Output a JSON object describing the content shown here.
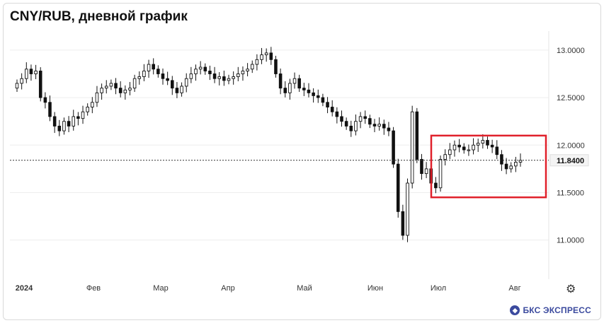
{
  "title": "CNY/RUB, дневной график",
  "brand": {
    "name": "БКС ЭКСПРЕСС",
    "icon": "bks-logo-icon"
  },
  "settings_icon": "gear-icon",
  "colors": {
    "candle": "#111111",
    "highlight_box": "#e0202a",
    "dotted_line": "#333333",
    "grid": "#eeeeee"
  },
  "chart_data": {
    "type": "candlestick",
    "title": "CNY/RUB, дневной график",
    "x_tick_labels": [
      "2024",
      "Фев",
      "Мар",
      "Апр",
      "Май",
      "Июн",
      "Июл",
      "Авг"
    ],
    "y_tick_labels": [
      "13.0000",
      "12.5000",
      "12.0000",
      "11.5000",
      "11.0000"
    ],
    "y_ticks": [
      13.0,
      12.5,
      12.0,
      11.5,
      11.0
    ],
    "ylim": [
      10.7,
      13.2
    ],
    "last_price_label": "11.8400",
    "last_price": 11.84,
    "highlight_range": {
      "x_start": "Июл",
      "x_end": "Авг",
      "y_low": 11.45,
      "y_high": 12.1
    },
    "close_series": [
      12.65,
      12.7,
      12.8,
      12.75,
      12.78,
      12.5,
      12.45,
      12.3,
      12.2,
      12.15,
      12.25,
      12.2,
      12.3,
      12.28,
      12.35,
      12.4,
      12.45,
      12.55,
      12.6,
      12.62,
      12.65,
      12.6,
      12.55,
      12.58,
      12.6,
      12.7,
      12.72,
      12.78,
      12.85,
      12.8,
      12.75,
      12.7,
      12.68,
      12.6,
      12.55,
      12.62,
      12.7,
      12.75,
      12.8,
      12.82,
      12.78,
      12.75,
      12.7,
      12.72,
      12.68,
      12.7,
      12.72,
      12.75,
      12.78,
      12.8,
      12.85,
      12.9,
      12.95,
      12.97,
      12.9,
      12.75,
      12.6,
      12.55,
      12.65,
      12.7,
      12.6,
      12.58,
      12.55,
      12.52,
      12.5,
      12.45,
      12.4,
      12.35,
      12.3,
      12.25,
      12.2,
      12.15,
      12.25,
      12.3,
      12.28,
      12.22,
      12.2,
      12.22,
      12.18,
      12.15,
      11.8,
      11.3,
      11.05,
      11.6,
      12.35,
      11.85,
      11.7,
      11.75,
      11.6,
      11.55,
      11.85,
      11.9,
      11.95,
      12.0,
      11.98,
      11.95,
      11.95,
      12.0,
      12.02,
      12.05,
      12.0,
      11.98,
      11.9,
      11.8,
      11.75,
      11.78,
      11.82,
      11.84
    ]
  }
}
